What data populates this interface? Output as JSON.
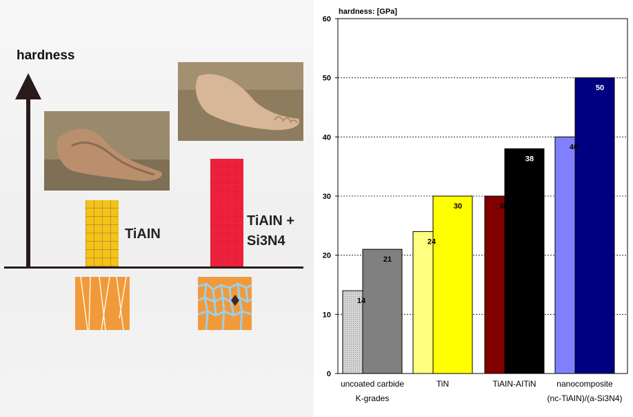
{
  "left_panel": {
    "axis_label": "hardness",
    "material_1": "TiAIN",
    "material_2_line1": "TiAIN +",
    "material_2_line2": "Si3N4"
  },
  "chart_data": {
    "type": "bar",
    "title": "hardness: [GPa]",
    "xlabel": "",
    "ylabel": "hardness: [GPa]",
    "ylim": [
      0,
      60
    ],
    "yticks": [
      0,
      10,
      20,
      30,
      40,
      50,
      60
    ],
    "gridlines": [
      10,
      20,
      30,
      40,
      50
    ],
    "grid": "dashed horizontal",
    "legend": "none",
    "categories": [
      {
        "line1": "uncoated carbide",
        "line2": "K-grades"
      },
      {
        "line1": "TiN",
        "line2": ""
      },
      {
        "line1": "TiAIN-AITiN",
        "line2": ""
      },
      {
        "line1": "nanocomposite",
        "line2": "(nc-TiAIN)/(a-Si3N4)"
      }
    ],
    "bars": [
      {
        "group": 0,
        "slot": 0,
        "value": 14,
        "color": "#c8c8c8",
        "label_color": "#000000",
        "pattern": true
      },
      {
        "group": 0,
        "slot": 1,
        "value": 21,
        "color": "#808080",
        "label_color": "#000000",
        "pattern": false
      },
      {
        "group": 1,
        "slot": 0,
        "value": 24,
        "color": "#ffff80",
        "label_color": "#000000",
        "pattern": false
      },
      {
        "group": 1,
        "slot": 1,
        "value": 30,
        "color": "#ffff00",
        "label_color": "#000000",
        "pattern": false
      },
      {
        "group": 2,
        "slot": 0,
        "value": 30,
        "color": "#800000",
        "label_color": "#000000",
        "pattern": false
      },
      {
        "group": 2,
        "slot": 1,
        "value": 38,
        "color": "#000000",
        "label_color": "#ffffff",
        "pattern": false
      },
      {
        "group": 3,
        "slot": 0,
        "value": 40,
        "color": "#8080ff",
        "label_color": "#000000",
        "pattern": false
      },
      {
        "group": 3,
        "slot": 1,
        "value": 50,
        "color": "#000080",
        "label_color": "#ffffff",
        "pattern": false
      }
    ]
  }
}
